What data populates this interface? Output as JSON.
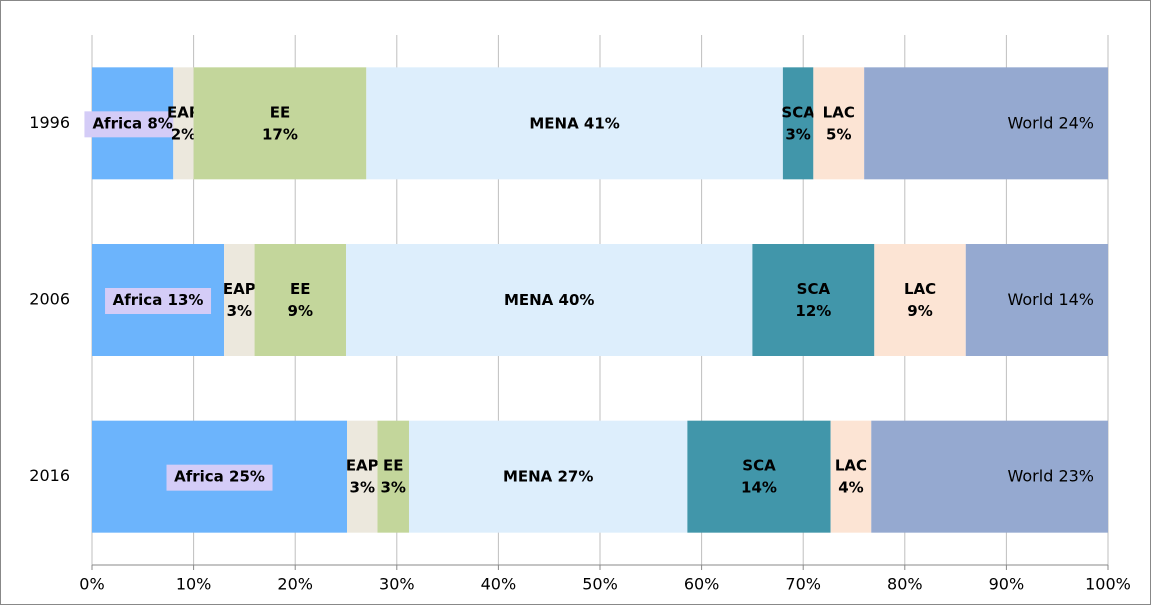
{
  "chart_data": {
    "type": "stacked_bar_horizontal",
    "categories": [
      "1996",
      "2006",
      "2016"
    ],
    "series": [
      {
        "name": "Africa",
        "color": "#6cb4fc",
        "values": [
          8,
          13,
          25.1
        ],
        "value_labels": [
          [
            "Africa 8%"
          ],
          [
            "Africa 13%"
          ],
          [
            "Africa 25%"
          ]
        ]
      },
      {
        "name": "EAP",
        "color": "#ece8dd",
        "values": [
          2,
          3,
          3.0
        ],
        "value_labels": [
          [
            "EAP",
            "2%"
          ],
          [
            "EAP",
            "3%"
          ],
          [
            "EAP",
            "3%"
          ]
        ]
      },
      {
        "name": "EE",
        "color": "#c3d69b",
        "values": [
          17,
          9,
          3.1
        ],
        "value_labels": [
          [
            "EE",
            "17%"
          ],
          [
            "EE",
            "9%"
          ],
          [
            "EE",
            "3%"
          ]
        ]
      },
      {
        "name": "MENA",
        "color": "#ddeefc",
        "values": [
          41,
          40,
          27.4
        ],
        "value_labels": [
          [
            "MENA 41%"
          ],
          [
            "MENA 40%"
          ],
          [
            "MENA 27%"
          ]
        ]
      },
      {
        "name": "SCA",
        "color": "#4196aa",
        "values": [
          3,
          12,
          14.1
        ],
        "value_labels": [
          [
            "SCA",
            "3%"
          ],
          [
            "SCA",
            "12%"
          ],
          [
            "SCA",
            "14%"
          ]
        ]
      },
      {
        "name": "LAC",
        "color": "#fce4d4",
        "values": [
          5,
          9,
          4.0
        ],
        "value_labels": [
          [
            "LAC",
            "5%"
          ],
          [
            "LAC",
            "9%"
          ],
          [
            "LAC",
            "4%"
          ]
        ]
      },
      {
        "name": "World",
        "color": "#95a9d0",
        "values": [
          24,
          14,
          23.3
        ],
        "value_labels": [
          [
            "World 24%"
          ],
          [
            "World 14%"
          ],
          [
            "World 23%"
          ]
        ]
      }
    ],
    "xlim": [
      0,
      100
    ],
    "xticks": [
      {
        "value": 0,
        "label": "0%"
      },
      {
        "value": 10,
        "label": "10%"
      },
      {
        "value": 20,
        "label": "20%"
      },
      {
        "value": 30,
        "label": "30%"
      },
      {
        "value": 40,
        "label": "40%"
      },
      {
        "value": 50,
        "label": "50%"
      },
      {
        "value": 60,
        "label": "60%"
      },
      {
        "value": 70,
        "label": "70%"
      },
      {
        "value": 80,
        "label": "80%"
      },
      {
        "value": 90,
        "label": "90%"
      },
      {
        "value": 100,
        "label": "100%"
      }
    ],
    "grid": true
  }
}
